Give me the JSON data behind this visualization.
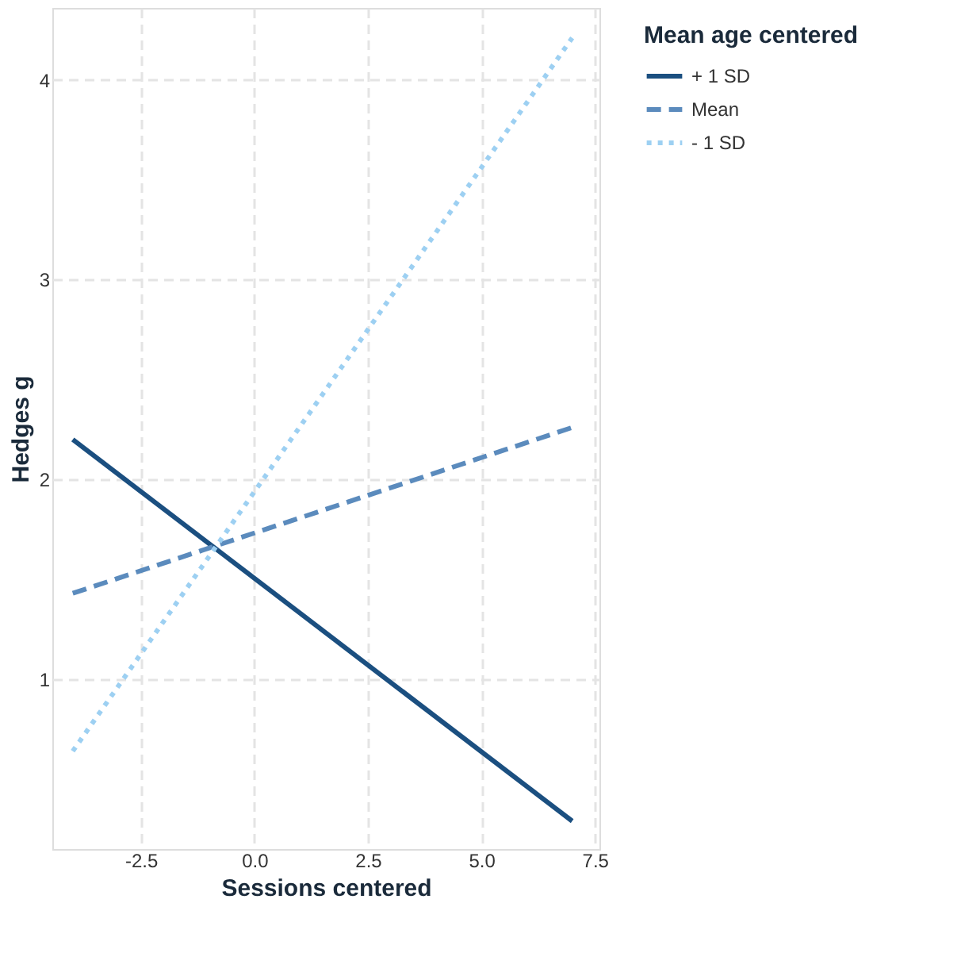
{
  "chart_data": {
    "type": "line",
    "xlabel": "Sessions centered",
    "ylabel": "Hedges g",
    "legend_title": "Mean age centered",
    "x": [
      -4,
      7
    ],
    "xlim": [
      -4.45,
      7.6
    ],
    "xticks": [
      -2.5,
      {
        "value": 0,
        "label": "0.0"
      },
      2.5,
      {
        "value": 5,
        "label": "5.0"
      },
      7.5
    ],
    "ylim": [
      0.15,
      4.36
    ],
    "yticks": [
      1,
      2,
      3,
      4
    ],
    "grid": true,
    "legend": "right",
    "series": [
      {
        "name": "+ 1 SD",
        "color": "#1b4f80",
        "values": [
          2.2,
          0.29
        ],
        "line_style": "solid"
      },
      {
        "name": "Mean",
        "color": "#5b8bbd",
        "values": [
          1.43,
          2.26
        ],
        "line_style": "dashed"
      },
      {
        "name": "- 1 SD",
        "color": "#9dd0f2",
        "values": [
          0.64,
          4.21
        ],
        "line_style": "dotted"
      }
    ]
  }
}
